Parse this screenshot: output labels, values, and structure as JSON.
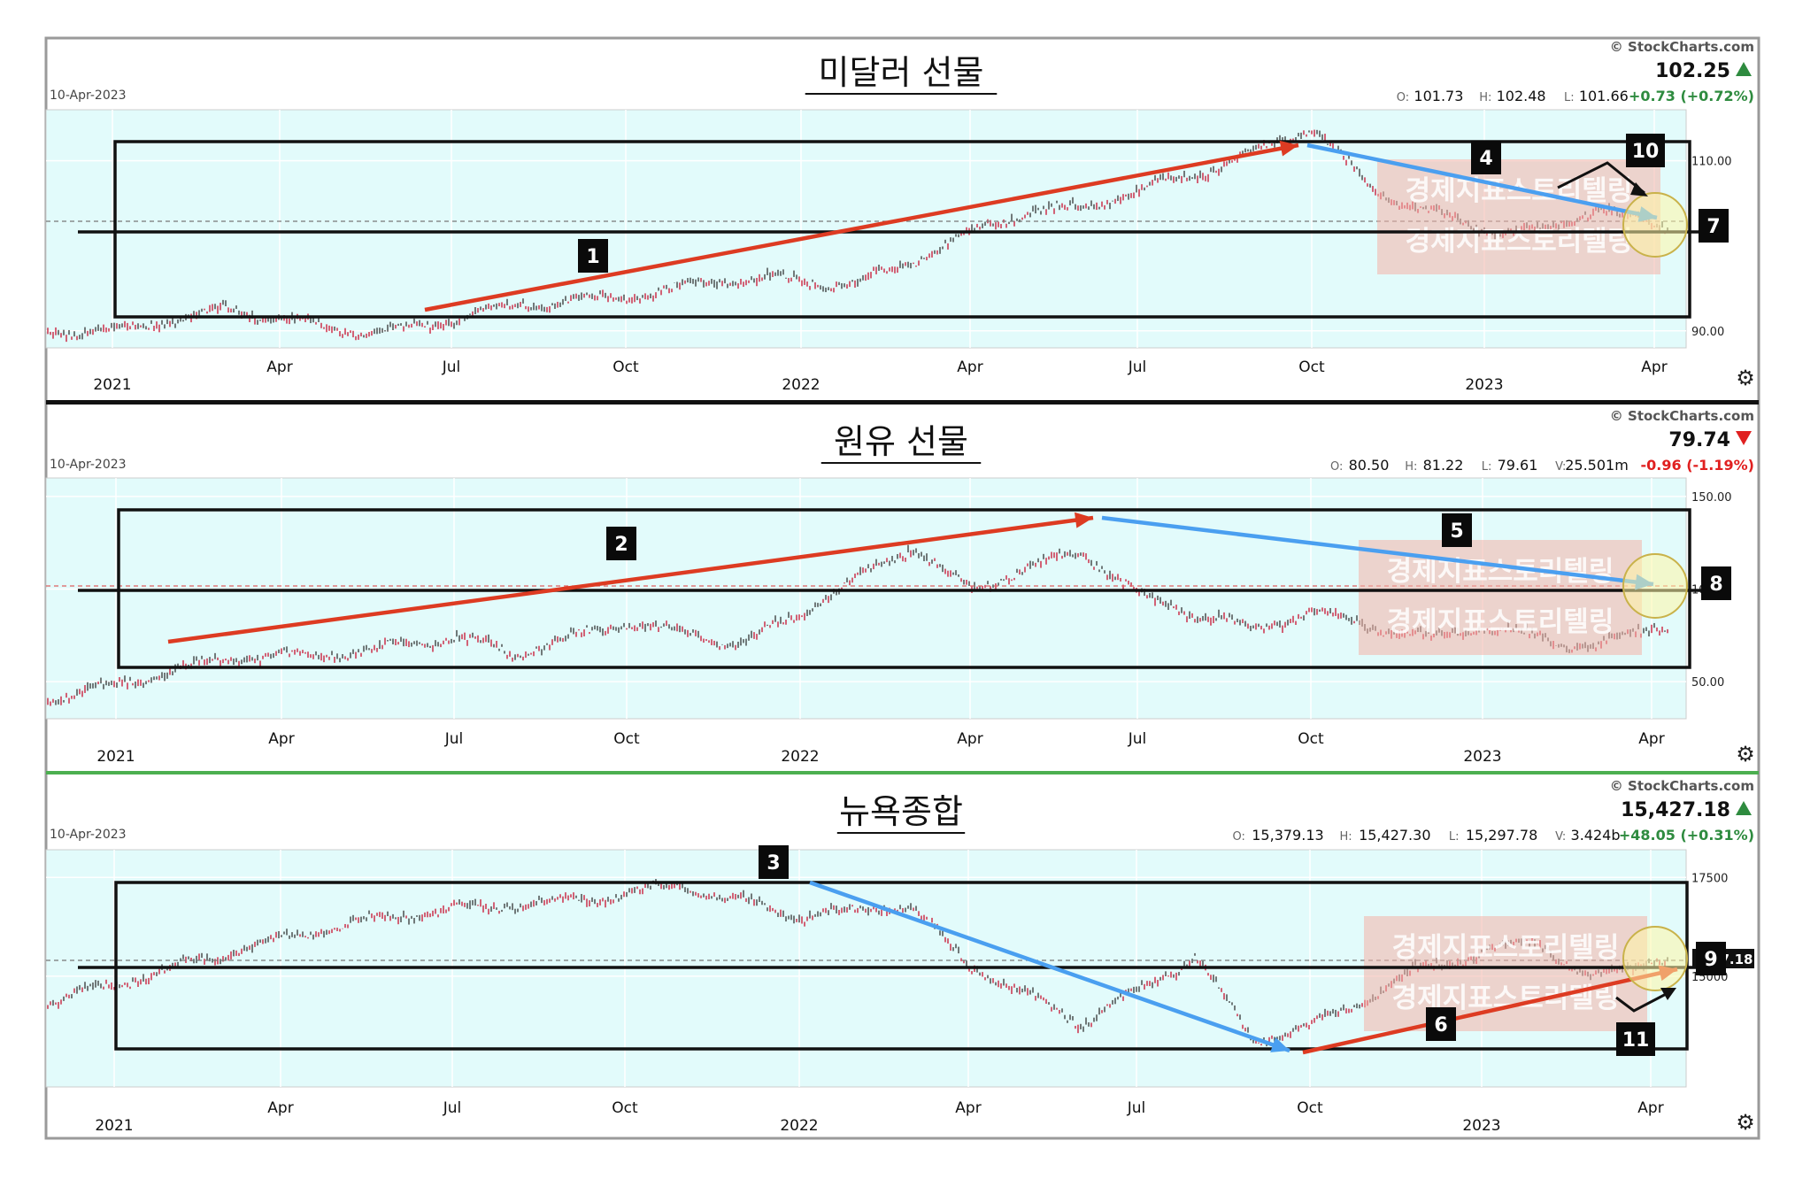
{
  "brand": "© StockCharts.com",
  "watermark": "경제지표스토리텔링",
  "panels": [
    {
      "title": "미달러 선물",
      "date": "10-Apr-2023",
      "price": "102.25",
      "direction": "up",
      "ohlc": [
        {
          "label": "O:",
          "value": "101.73"
        },
        {
          "label": "H:",
          "value": "102.48"
        },
        {
          "label": "L:",
          "value": "101.66"
        }
      ],
      "change": "+0.73 (+0.72%)",
      "y_ticks": [
        "110.00",
        "90.00"
      ],
      "x_ticks": [
        "2021",
        "Apr",
        "Jul",
        "Oct",
        "2022",
        "Apr",
        "Jul",
        "Oct",
        "2023",
        "Apr"
      ],
      "annotations": [
        "1",
        "4",
        "7",
        "10"
      ]
    },
    {
      "title": "원유 선물",
      "date": "10-Apr-2023",
      "price": "79.74",
      "direction": "down",
      "ohlc": [
        {
          "label": "O:",
          "value": "80.50"
        },
        {
          "label": "H:",
          "value": "81.22"
        },
        {
          "label": "L:",
          "value": "79.61"
        },
        {
          "label": "V:",
          "value": "25.501m"
        }
      ],
      "change": "-0.96 (-1.19%)",
      "y_ticks": [
        "150.00",
        "100.00",
        "50.00"
      ],
      "x_ticks": [
        "2021",
        "Apr",
        "Jul",
        "Oct",
        "2022",
        "Apr",
        "Jul",
        "Oct",
        "2023",
        "Apr"
      ],
      "annotations": [
        "2",
        "5",
        "8"
      ]
    },
    {
      "title": "뉴욕종합",
      "date": "10-Apr-2023",
      "price": "15,427.18",
      "direction": "up",
      "ohlc": [
        {
          "label": "O:",
          "value": "15,379.13"
        },
        {
          "label": "H:",
          "value": "15,427.30"
        },
        {
          "label": "L:",
          "value": "15,297.78"
        },
        {
          "label": "V:",
          "value": "3.424b"
        }
      ],
      "change": "+48.05 (+0.31%)",
      "y_ticks": [
        "17500",
        "15000"
      ],
      "x_ticks": [
        "2021",
        "Apr",
        "Jul",
        "Oct",
        "2022",
        "Apr",
        "Jul",
        "Oct",
        "2023",
        "Apr"
      ],
      "annotations": [
        "3",
        "6",
        "9",
        "11"
      ],
      "last_value_label": "7.18"
    }
  ],
  "colors": {
    "plot_bg": "#e2fbfb",
    "up_arrow": "#2e8b3f",
    "down_arrow": "#e02020",
    "red_trend": "#dd3b22",
    "blue_trend": "#4a9ff0",
    "candle_up": "#333333",
    "candle_down": "#c8102e"
  },
  "chart_data": [
    {
      "type": "line",
      "title": "미달러 선물",
      "x": [
        "2021-01",
        "2021-03",
        "2021-05",
        "2021-06",
        "2021-08",
        "2021-10",
        "2021-12",
        "2022-02",
        "2022-03",
        "2022-04",
        "2022-05",
        "2022-06",
        "2022-07",
        "2022-08",
        "2022-09",
        "2022-10",
        "2022-11",
        "2022-12",
        "2023-01",
        "2023-02",
        "2023-03",
        "2023-04"
      ],
      "series": [
        {
          "values": [
            90.0,
            92.5,
            90.2,
            89.9,
            93.0,
            94.0,
            96.3,
            95.4,
            98.2,
            101.5,
            104.0,
            104.5,
            106.5,
            108.5,
            111.0,
            114.0,
            107.0,
            104.0,
            102.0,
            101.5,
            104.5,
            102.25
          ]
        }
      ],
      "ylim": [
        88,
        116
      ],
      "y_ticks": [
        110,
        90
      ]
    },
    {
      "type": "line",
      "title": "원유 선물",
      "x": [
        "2020-12",
        "2021-01",
        "2021-03",
        "2021-05",
        "2021-07",
        "2021-08",
        "2021-10",
        "2021-12",
        "2022-01",
        "2022-03",
        "2022-04",
        "2022-06",
        "2022-07",
        "2022-09",
        "2022-10",
        "2022-12",
        "2023-01",
        "2023-03",
        "2023-04"
      ],
      "series": [
        {
          "values": [
            42,
            48,
            63,
            65,
            74,
            65,
            82,
            70,
            87,
            123,
            100,
            121,
            96,
            78,
            88,
            73,
            80,
            68,
            79.74
          ]
        }
      ],
      "ylim": [
        30,
        160
      ],
      "y_ticks": [
        150,
        100,
        50
      ]
    },
    {
      "type": "line",
      "title": "뉴욕종합",
      "x": [
        "2020-12",
        "2021-01",
        "2021-03",
        "2021-05",
        "2021-07",
        "2021-09",
        "2021-11",
        "2022-01",
        "2022-03",
        "2022-04",
        "2022-06",
        "2022-08",
        "2022-09",
        "2022-10",
        "2022-12",
        "2023-02",
        "2023-03",
        "2023-04"
      ],
      "series": [
        {
          "values": [
            14400,
            14800,
            15600,
            16300,
            16700,
            16900,
            17300,
            16500,
            16800,
            15300,
            13800,
            15500,
            13400,
            13700,
            15200,
            15900,
            14900,
            15427.18
          ]
        }
      ],
      "ylim": [
        12200,
        18200
      ],
      "y_ticks": [
        17500,
        15000
      ]
    }
  ]
}
